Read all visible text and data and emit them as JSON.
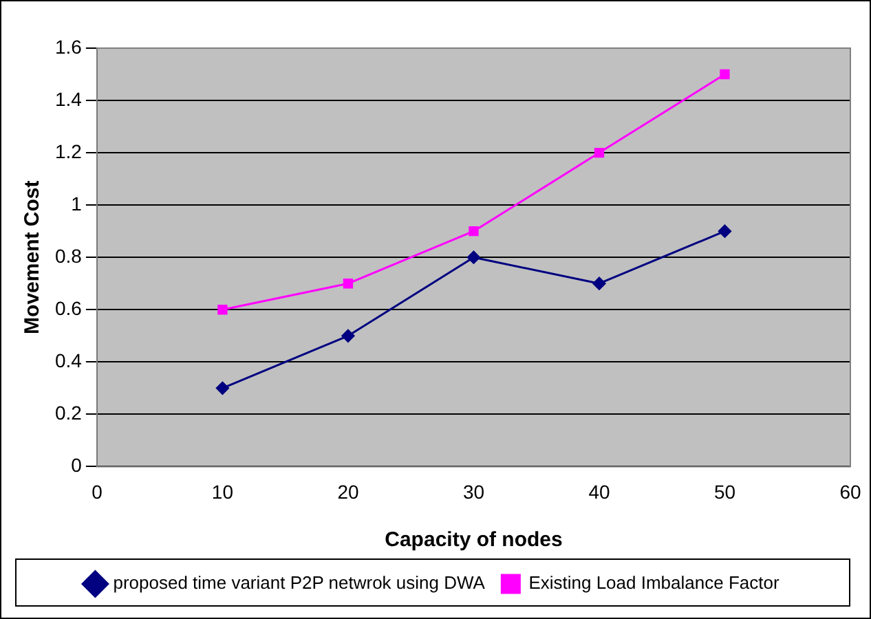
{
  "chart_data": {
    "type": "line",
    "xlabel": "Capacity of nodes",
    "ylabel": "Movement Cost",
    "x": [
      10,
      20,
      30,
      40,
      50
    ],
    "series": [
      {
        "name": "proposed time variant P2P netwrok using DWA",
        "color": "#000080",
        "marker": "diamond",
        "values": [
          0.3,
          0.5,
          0.8,
          0.7,
          0.9
        ]
      },
      {
        "name": "Existing Load Imbalance Factor",
        "color": "#ff00ff",
        "marker": "square",
        "values": [
          0.6,
          0.7,
          0.9,
          1.2,
          1.5
        ]
      }
    ],
    "xlim": [
      0,
      60
    ],
    "xticks": [
      0,
      10,
      20,
      30,
      40,
      50,
      60
    ],
    "ylim": [
      0,
      1.6
    ],
    "yticks": [
      0,
      0.2,
      0.4,
      0.6,
      0.8,
      1,
      1.2,
      1.4,
      1.6
    ],
    "grid": "y",
    "legend": "bottom",
    "line_style": "solid"
  }
}
